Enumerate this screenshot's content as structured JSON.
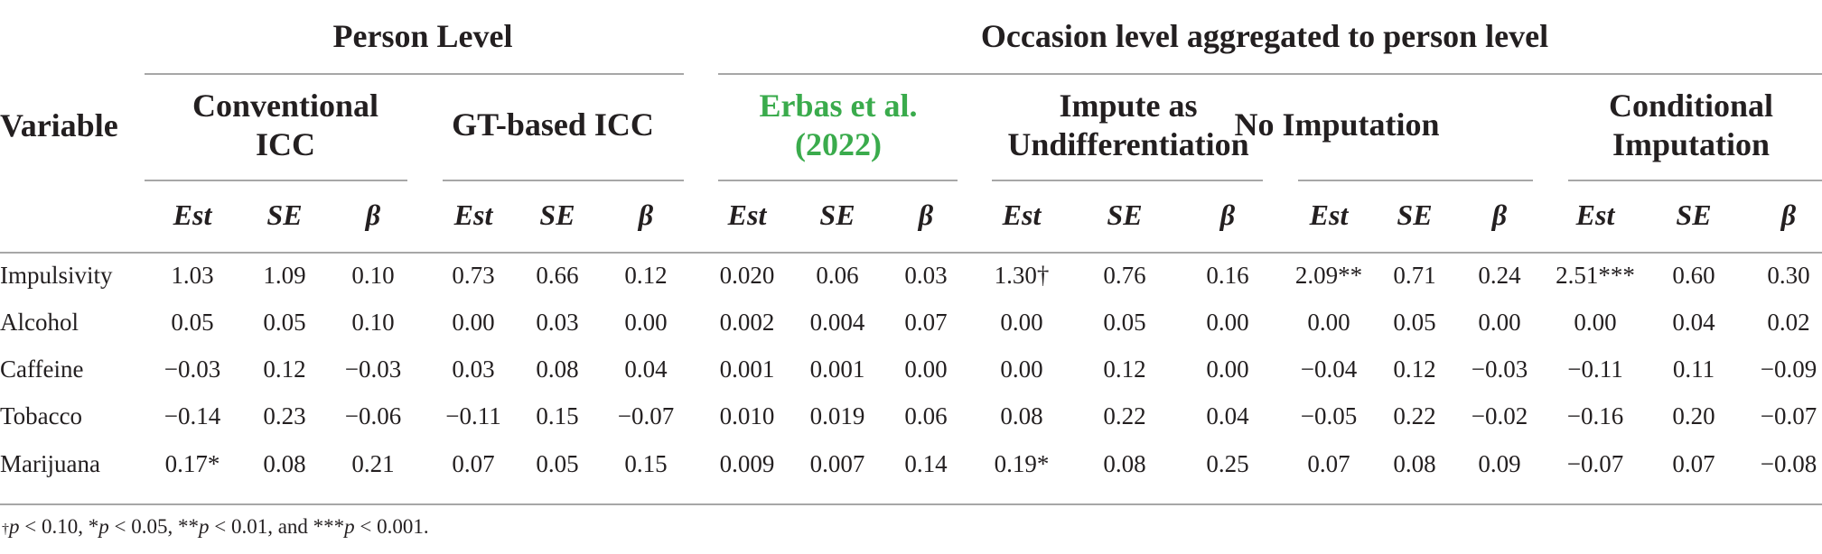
{
  "headers": {
    "variable": "Variable",
    "person_level": "Person Level",
    "occasion_level": "Occasion level aggregated to person level",
    "groups": [
      {
        "line1": "Conventional",
        "line2": "ICC",
        "color": "#231f20"
      },
      {
        "line1": "GT-based ICC",
        "line2": "",
        "color": "#231f20"
      },
      {
        "line1": "Erbas et al.",
        "line2": "(2022)",
        "color": "#3aab4c"
      },
      {
        "line1": "Impute as",
        "line2": "Undifferentiation",
        "color": "#231f20"
      },
      {
        "line1": "No Imputation",
        "line2": "",
        "color": "#231f20"
      },
      {
        "line1": "Conditional",
        "line2": "Imputation",
        "color": "#231f20"
      }
    ],
    "subheaders": [
      "Est",
      "SE",
      "β"
    ]
  },
  "rows": [
    {
      "label": "Impulsivity",
      "values": [
        "1.03",
        "1.09",
        "0.10",
        "0.73",
        "0.66",
        "0.12",
        "0.020",
        "0.06",
        "0.03",
        "1.30†",
        "0.76",
        "0.16",
        "2.09**",
        "0.71",
        "0.24",
        "2.51***",
        "0.60",
        "0.30"
      ]
    },
    {
      "label": "Alcohol",
      "values": [
        "0.05",
        "0.05",
        "0.10",
        "0.00",
        "0.03",
        "0.00",
        "0.002",
        "0.004",
        "0.07",
        "0.00",
        "0.05",
        "0.00",
        "0.00",
        "0.05",
        "0.00",
        "0.00",
        "0.04",
        "0.02"
      ]
    },
    {
      "label": "Caffeine",
      "values": [
        "−0.03",
        "0.12",
        "−0.03",
        "0.03",
        "0.08",
        "0.04",
        "0.001",
        "0.001",
        "0.00",
        "0.00",
        "0.12",
        "0.00",
        "−0.04",
        "0.12",
        "−0.03",
        "−0.11",
        "0.11",
        "−0.09"
      ]
    },
    {
      "label": "Tobacco",
      "values": [
        "−0.14",
        "0.23",
        "−0.06",
        "−0.11",
        "0.15",
        "−0.07",
        "0.010",
        "0.019",
        "0.06",
        "0.08",
        "0.22",
        "0.04",
        "−0.05",
        "0.22",
        "−0.02",
        "−0.16",
        "0.20",
        "−0.07"
      ]
    },
    {
      "label": "Marijuana",
      "values": [
        "0.17*",
        "0.08",
        "0.21",
        "0.07",
        "0.05",
        "0.15",
        "0.009",
        "0.007",
        "0.14",
        "0.19*",
        "0.08",
        "0.25",
        "0.07",
        "0.08",
        "0.09",
        "−0.07",
        "0.07",
        "−0.08"
      ]
    }
  ],
  "footnote": "†p < 0.10, *p < 0.05, **p < 0.01, and ***p < 0.001."
}
